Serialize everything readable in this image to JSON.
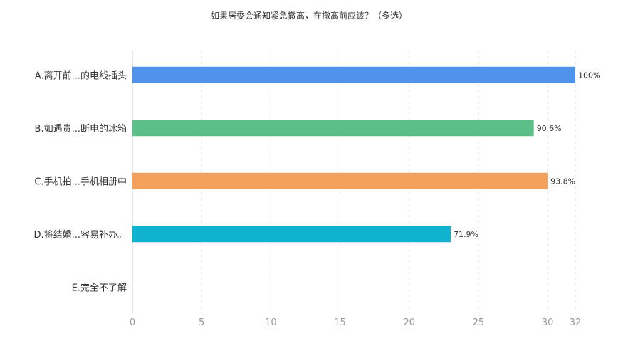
{
  "chart_data": {
    "type": "bar",
    "orientation": "horizontal",
    "title": "如果居委会通知紧急撤离，在撤离前应该？（多选）",
    "categories": [
      "A.离开前...的电线插头",
      "B.如遇贵...断电的冰箱",
      "C.手机拍...手机相册中",
      "D.将结婚...容易补办。",
      "E.完全不了解"
    ],
    "values": [
      32,
      29,
      30,
      23,
      0
    ],
    "data_labels": [
      "100%",
      "90.6%",
      "93.8%",
      "71.9%",
      ""
    ],
    "colors": [
      "#4f94ea",
      "#5bbf87",
      "#f4a15b",
      "#0fb3cf",
      "#cccccc"
    ],
    "xlim": [
      0,
      32
    ],
    "x_ticks": [
      0,
      5,
      10,
      15,
      20,
      25,
      30,
      32
    ],
    "grid": true,
    "legend": "none"
  }
}
